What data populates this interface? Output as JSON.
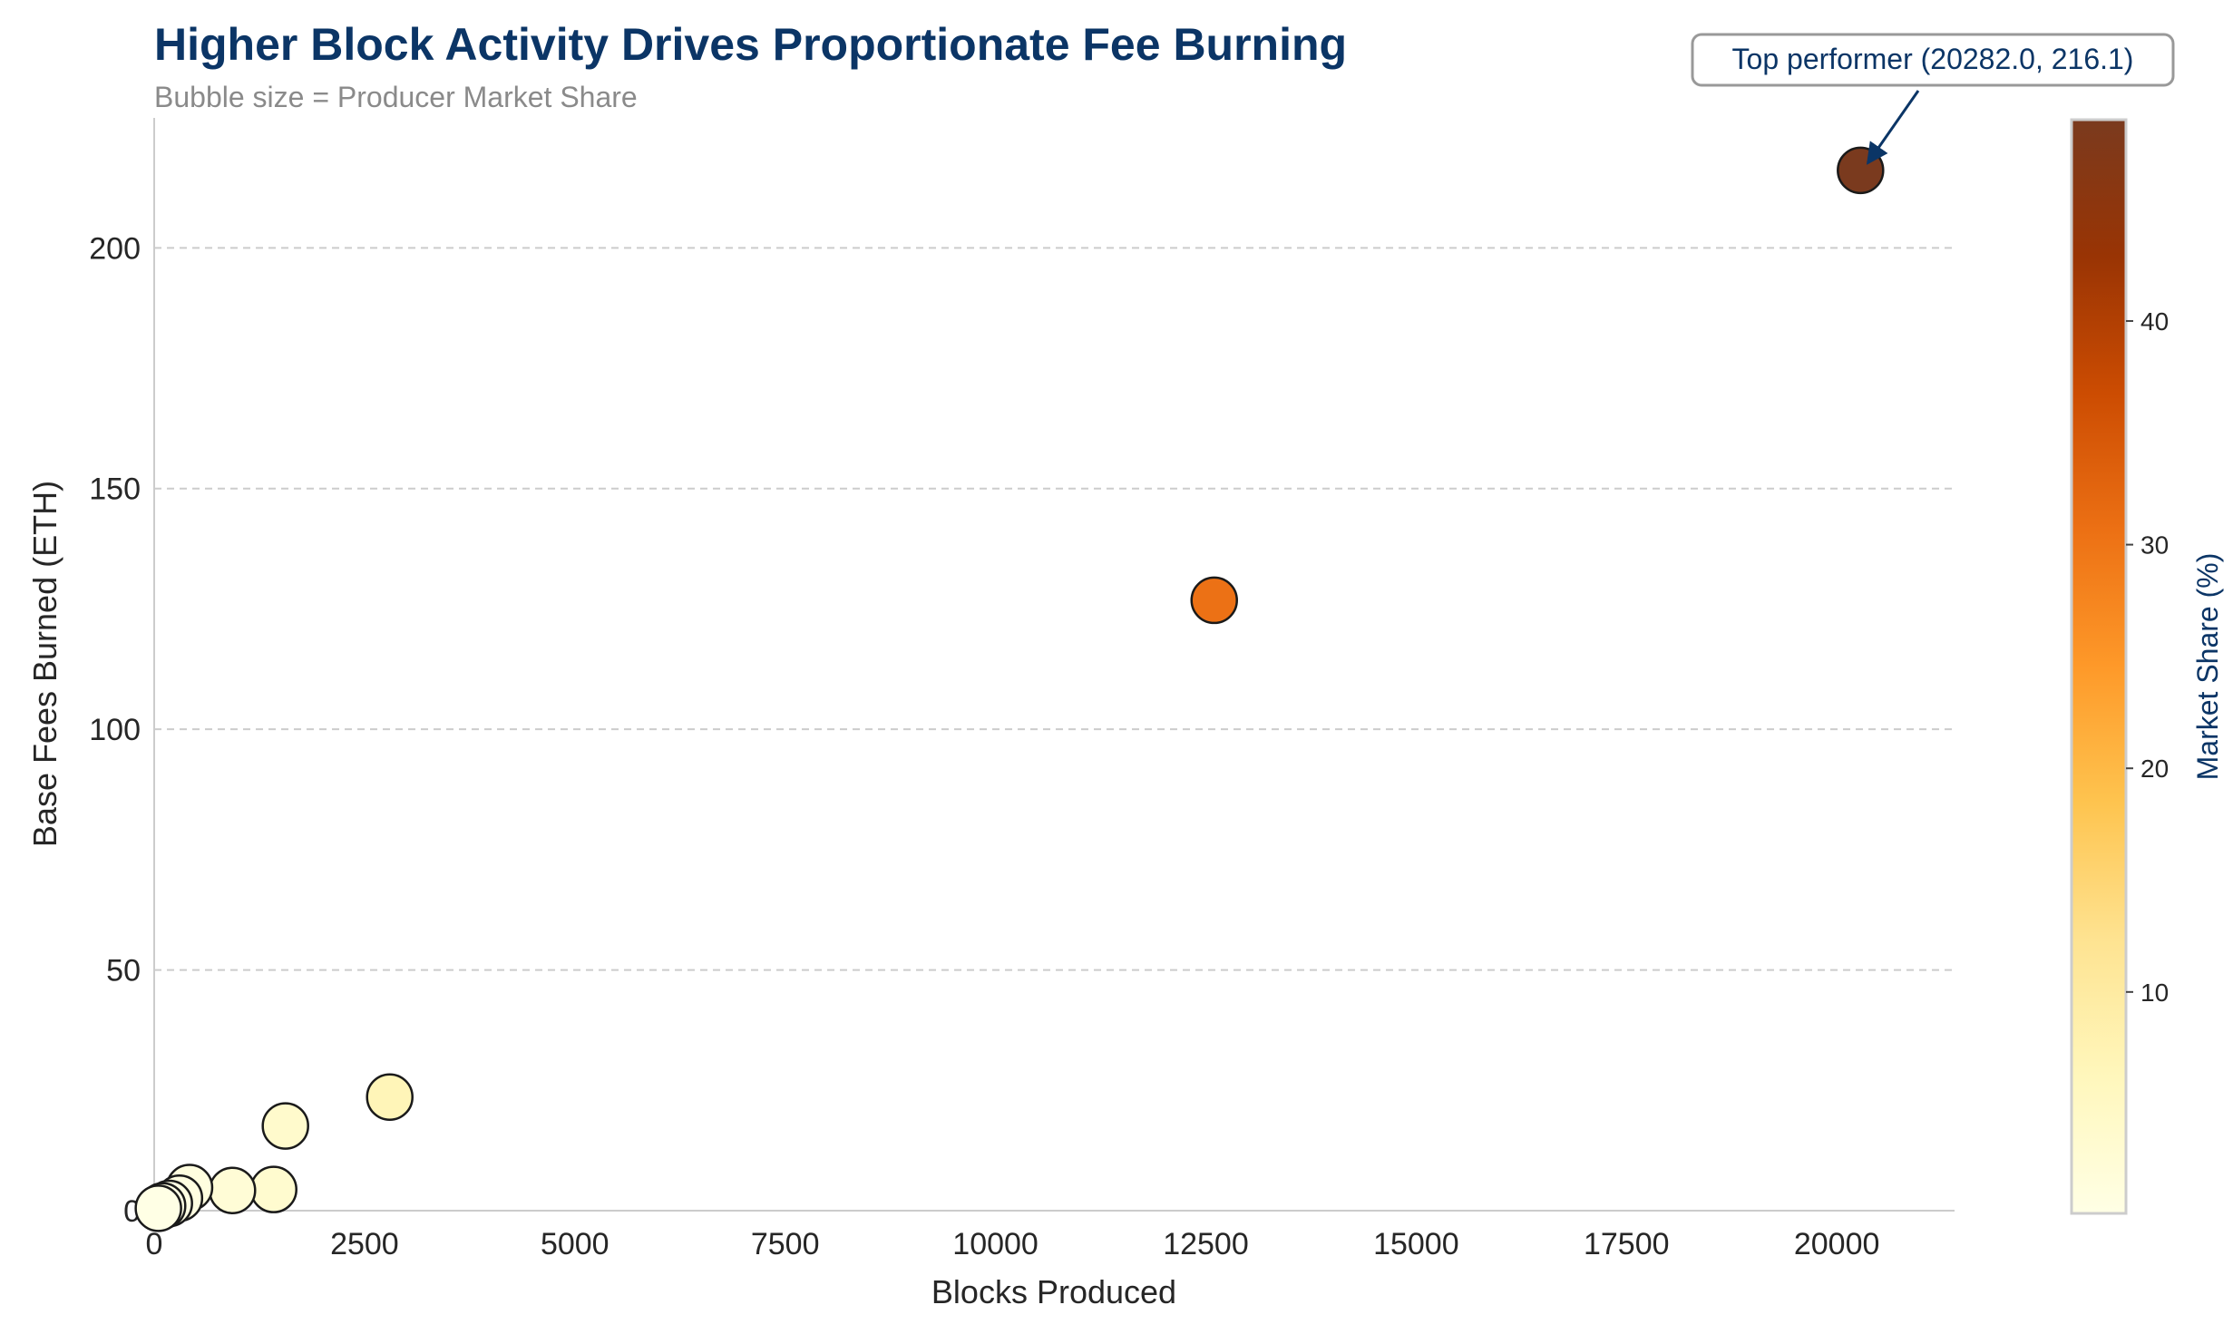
{
  "chart_data": {
    "type": "scatter",
    "title": "Higher Block Activity Drives Proportionate Fee Burning",
    "subtitle": "Bubble size = Producer Market Share",
    "xlabel": "Blocks Produced",
    "ylabel": "Base Fees Burned (ETH)",
    "xlim": [
      0,
      21400
    ],
    "ylim": [
      0,
      227
    ],
    "xticks": [
      0,
      2500,
      5000,
      7500,
      10000,
      12500,
      15000,
      17500,
      20000
    ],
    "yticks": [
      0,
      50,
      100,
      150,
      200
    ],
    "grid": "horizontal dashed",
    "colormap": "YlOrBr",
    "points": [
      {
        "x": 20282,
        "y": 216.1,
        "share": 49.0
      },
      {
        "x": 12600,
        "y": 126.8,
        "share": 30.5
      },
      {
        "x": 2800,
        "y": 23.6,
        "share": 6.8
      },
      {
        "x": 1560,
        "y": 17.6,
        "share": 3.8
      },
      {
        "x": 1420,
        "y": 4.4,
        "share": 3.4
      },
      {
        "x": 930,
        "y": 4.2,
        "share": 2.3
      },
      {
        "x": 420,
        "y": 4.8,
        "share": 1.0
      },
      {
        "x": 300,
        "y": 2.6,
        "share": 0.7
      },
      {
        "x": 180,
        "y": 1.5,
        "share": 0.4
      },
      {
        "x": 100,
        "y": 1.0,
        "share": 0.2
      },
      {
        "x": 50,
        "y": 0.5,
        "share": 0.1
      }
    ],
    "colorbar": {
      "label": "Market Share (%)",
      "min": 0.1,
      "max": 49.0,
      "ticks": [
        10,
        20,
        30,
        40
      ]
    },
    "annotation": {
      "text": "Top performer (20282.0, 216.1)",
      "x": 20282,
      "y": 216.1
    }
  }
}
